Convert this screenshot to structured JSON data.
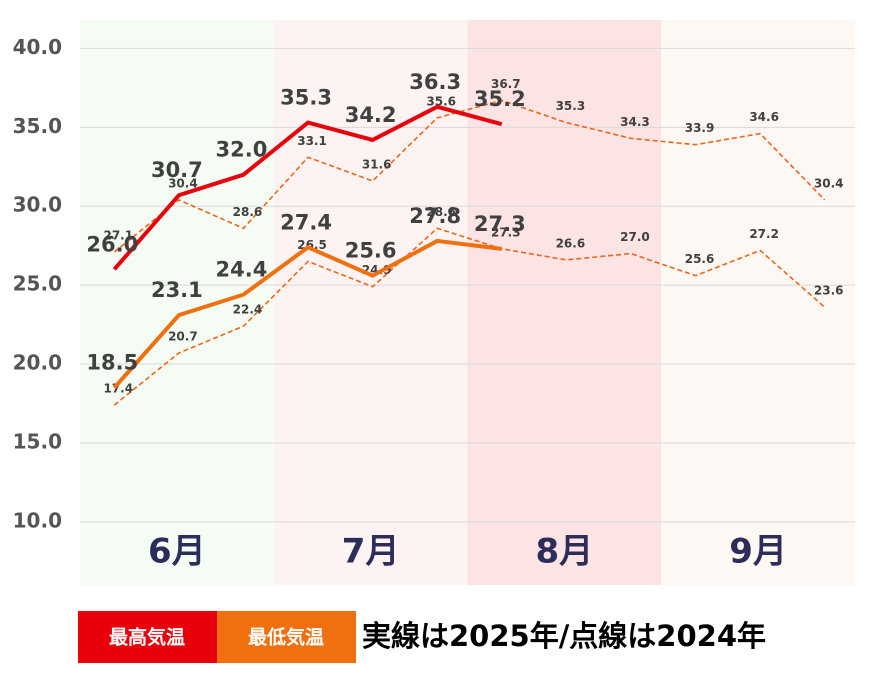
{
  "chart_data": {
    "type": "line",
    "categories": [
      null,
      null,
      null,
      null,
      null,
      null,
      null,
      null,
      null,
      null,
      null,
      null
    ],
    "months": [
      "6月",
      "7月",
      "8月",
      "9月"
    ],
    "month_colors": [
      "#f5fcf4",
      "#fdf3f3",
      "#fce3e4",
      "#fdf8f3"
    ],
    "series": [
      {
        "color": "#f06418",
        "style": "dashed",
        "values": [
          27.1,
          30.4,
          28.6,
          33.1,
          31.6,
          35.6,
          36.7,
          35.3,
          34.3,
          33.9,
          34.6,
          30.4
        ],
        "value_labels": [
          "27.1",
          "30.4",
          "28.6",
          "33.1",
          "31.6",
          "35.6",
          "36.7",
          "35.3",
          "34.3",
          "33.9",
          "34.6",
          "30.4"
        ]
      },
      {
        "color": "#f06418",
        "style": "dashed",
        "values": [
          17.4,
          20.7,
          22.4,
          26.5,
          24.9,
          28.6,
          27.3,
          26.6,
          27.0,
          25.6,
          27.2,
          23.6
        ],
        "value_labels": [
          "17.4",
          "20.7",
          "22.4",
          "26.5",
          "24.9",
          "28.6",
          "27.3",
          "26.6",
          "27.0",
          "25.6",
          "27.2",
          "23.6"
        ]
      },
      {
        "color": "#e8000b",
        "style": "solid",
        "values": [
          26.0,
          30.7,
          32.0,
          35.3,
          34.2,
          36.3,
          35.2,
          null,
          null,
          null,
          null,
          null
        ],
        "value_labels": [
          "26.0",
          "30.7",
          "32.0",
          "35.3",
          "34.2",
          "36.3",
          "35.2",
          null,
          null,
          null,
          null,
          null
        ]
      },
      {
        "color": "#f07010",
        "style": "solid",
        "values": [
          18.5,
          23.1,
          24.4,
          27.4,
          25.6,
          27.8,
          27.3,
          null,
          null,
          null,
          null,
          null
        ],
        "value_labels": [
          "18.5",
          "23.1",
          "24.4",
          "27.4",
          "25.6",
          "27.8",
          "27.3",
          null,
          null,
          null,
          null,
          null
        ]
      }
    ],
    "ylim": [
      6,
      41.8
    ],
    "yticks": [
      {
        "value": 10,
        "label": "10.0"
      },
      {
        "value": 15,
        "label": "15.0"
      },
      {
        "value": 20,
        "label": "20.0"
      },
      {
        "value": 25,
        "label": "25.0"
      },
      {
        "value": 30,
        "label": "30.0"
      },
      {
        "value": 35,
        "label": "35.0"
      },
      {
        "value": 40,
        "label": "40.0"
      }
    ],
    "grid": true,
    "legend": [
      {
        "name": "最高気温",
        "color": "#e8000b"
      },
      {
        "name": "最低気温",
        "color": "#f07010"
      }
    ],
    "note": "実線は2025年/点線は2024年"
  }
}
